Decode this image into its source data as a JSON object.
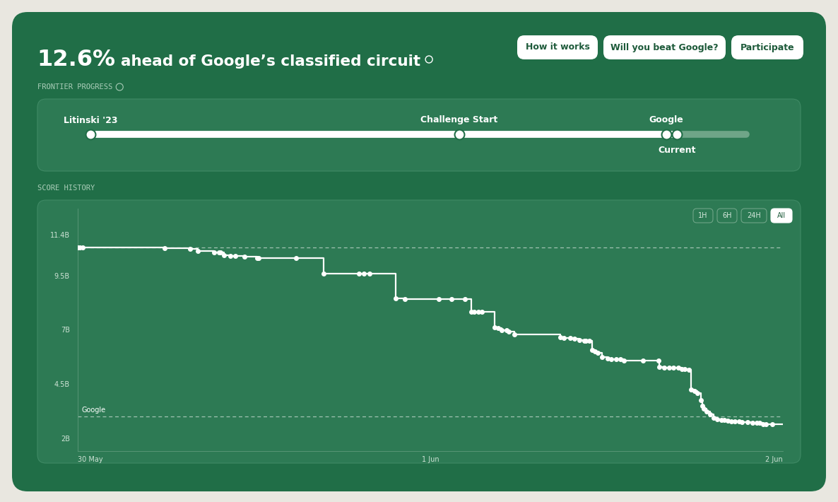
{
  "header": {
    "highlight": "12.6%",
    "title": "ahead of Google’s classified circuit",
    "buttons": [
      "How it works",
      "Will you beat Google?",
      "Participate"
    ]
  },
  "frontier_progress": {
    "label": "FRONTIER PROGRESS",
    "milestones": [
      "Litinski '23",
      "Challenge Start",
      "Google",
      "Current"
    ]
  },
  "score_history": {
    "label": "SCORE HISTORY",
    "range_buttons": [
      "1H",
      "6H",
      "24H",
      "All"
    ],
    "active_range": "All"
  },
  "chart_data": {
    "type": "line",
    "line_style": "steps",
    "marker": "o",
    "color": "#ffffff",
    "grid": false,
    "x": [
      12.0,
      12.2,
      12.5,
      20.9,
      23.5,
      24.3,
      25.9,
      26.4,
      26.6,
      26.9,
      27.6,
      28.1,
      29.0,
      30.3,
      30.5,
      34.3,
      37.1,
      40.7,
      41.2,
      41.8,
      44.5,
      45.4,
      48.9,
      50.2,
      51.5,
      52.2,
      52.5,
      52.9,
      53.3,
      54.6,
      54.9,
      55.3,
      55.8,
      56.0,
      56.6,
      61.3,
      61.6,
      62.3,
      62.7,
      63.2,
      63.7,
      63.9,
      64.2,
      64.5,
      64.8,
      65.1,
      65.5,
      66.1,
      66.5,
      67.0,
      67.4,
      67.8,
      69.7,
      71.3,
      71.4,
      71.9,
      72.4,
      72.8,
      73.3,
      73.7,
      74.0,
      74.4,
      74.6,
      75.0,
      75.3,
      75.6,
      75.8,
      75.9,
      76.2,
      76.6,
      76.9,
      77.3,
      77.7,
      78.0,
      78.4,
      78.7,
      79.1,
      79.5,
      79.8,
      80.4,
      80.9,
      81.3,
      81.6,
      82.0,
      82.3,
      82.9
    ],
    "values": [
      10.79,
      10.79,
      10.79,
      10.76,
      10.73,
      10.63,
      10.59,
      10.59,
      10.56,
      10.43,
      10.4,
      10.4,
      10.37,
      10.33,
      10.33,
      10.33,
      9.61,
      9.61,
      9.61,
      9.61,
      8.44,
      8.41,
      8.41,
      8.41,
      8.41,
      7.82,
      7.82,
      7.82,
      7.82,
      7.1,
      7.07,
      7.0,
      6.97,
      6.93,
      6.8,
      6.67,
      6.64,
      6.61,
      6.58,
      6.54,
      6.51,
      6.51,
      6.48,
      6.08,
      6.02,
      5.95,
      5.73,
      5.69,
      5.66,
      5.63,
      5.63,
      5.59,
      5.59,
      5.59,
      5.27,
      5.24,
      5.24,
      5.24,
      5.24,
      5.2,
      5.2,
      5.17,
      4.25,
      4.19,
      4.09,
      3.76,
      3.5,
      3.37,
      3.24,
      3.11,
      2.92,
      2.88,
      2.85,
      2.85,
      2.82,
      2.78,
      2.78,
      2.78,
      2.75,
      2.75,
      2.72,
      2.69,
      2.69,
      2.65,
      2.65,
      2.65
    ],
    "xlim": [
      12,
      84
    ],
    "xticks": [
      {
        "value": 12,
        "label": "30 May"
      },
      {
        "value": 48,
        "label": "1 Jun"
      },
      {
        "value": 84,
        "label": "2 Jun"
      }
    ],
    "ylim": [
      1.4,
      12.6
    ],
    "yticks": [
      {
        "value": 2,
        "label": "2B"
      },
      {
        "value": 4.5,
        "label": "4.5B"
      },
      {
        "value": 7,
        "label": "7B"
      },
      {
        "value": 9.5,
        "label": "9.5B"
      },
      {
        "value": 11.4,
        "label": "11.4B"
      }
    ],
    "reference_lines": [
      {
        "value": 10.79
      },
      {
        "value": 3.01,
        "label": "Google"
      }
    ]
  }
}
